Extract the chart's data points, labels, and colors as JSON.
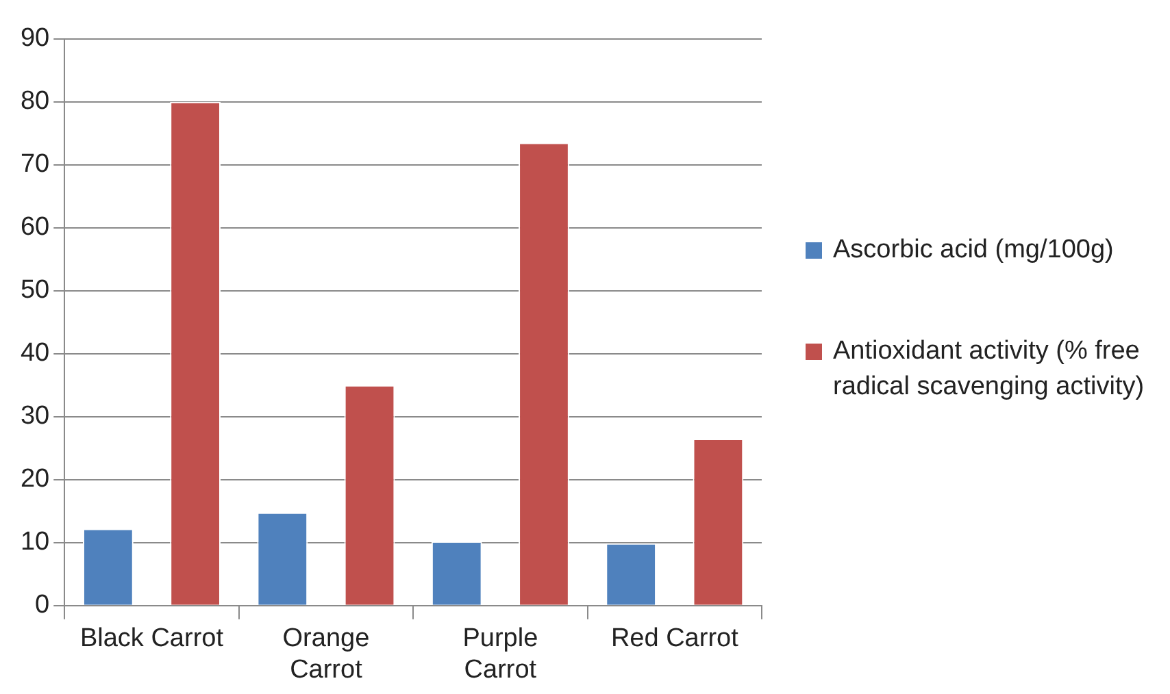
{
  "chart_data": {
    "type": "bar",
    "categories": [
      "Black Carrot",
      "Orange Carrot",
      "Purple Carrot",
      "Red Carrot"
    ],
    "series": [
      {
        "name": "Ascorbic acid (mg/100g)",
        "color": "#4f81bd",
        "values": [
          12.2,
          14.8,
          10.2,
          9.9
        ]
      },
      {
        "name": "Antioxidant activity (% free radical scavenging activity)",
        "color": "#c0504d",
        "values": [
          80.0,
          35.0,
          73.5,
          26.5
        ]
      }
    ],
    "ylim": [
      0,
      90
    ],
    "yticks": [
      0,
      10,
      20,
      30,
      40,
      50,
      60,
      70,
      80,
      90
    ],
    "grid": "y",
    "legend": "right"
  }
}
